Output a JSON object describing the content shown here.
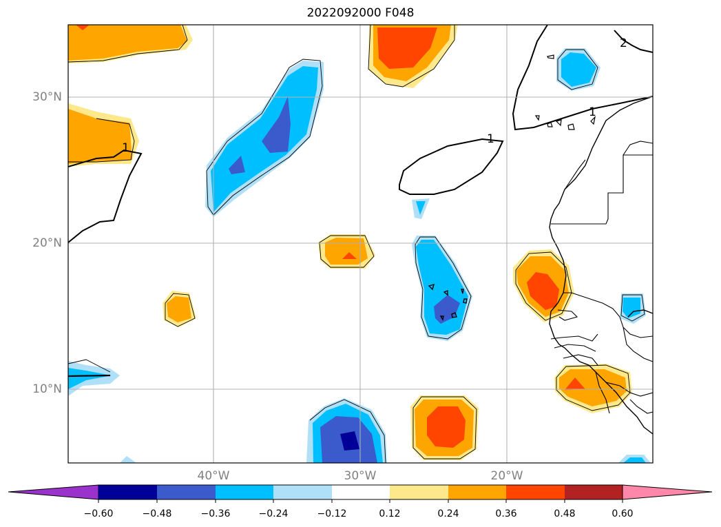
{
  "map": {
    "title": "2022092000 F048",
    "lat_labels": [
      "30°N",
      "20°N",
      "10°N"
    ],
    "lon_labels": [
      "40°W",
      "30°W",
      "20°W"
    ],
    "contour_labels": [
      "1",
      "1",
      "1",
      "2"
    ],
    "colors": {
      "ocean": "#ffffff",
      "grid": "#b0b0b0",
      "coastline": "#000000"
    }
  },
  "colorbar": {
    "ticks": [
      "−0.60",
      "−0.48",
      "−0.36",
      "−0.24",
      "−0.12",
      "0.12",
      "0.24",
      "0.36",
      "0.48",
      "0.60"
    ],
    "bins": [
      {
        "color": "#9933cc",
        "extend": "min"
      },
      {
        "color": "#000099"
      },
      {
        "color": "#3b5bcc"
      },
      {
        "color": "#00bfff"
      },
      {
        "color": "#b0e0f8"
      },
      {
        "color": "#ffffff"
      },
      {
        "color": "#fde98b"
      },
      {
        "color": "#ffa500"
      },
      {
        "color": "#ff4500"
      },
      {
        "color": "#b22222"
      },
      {
        "color": "#ff88aa",
        "extend": "max"
      }
    ]
  }
}
